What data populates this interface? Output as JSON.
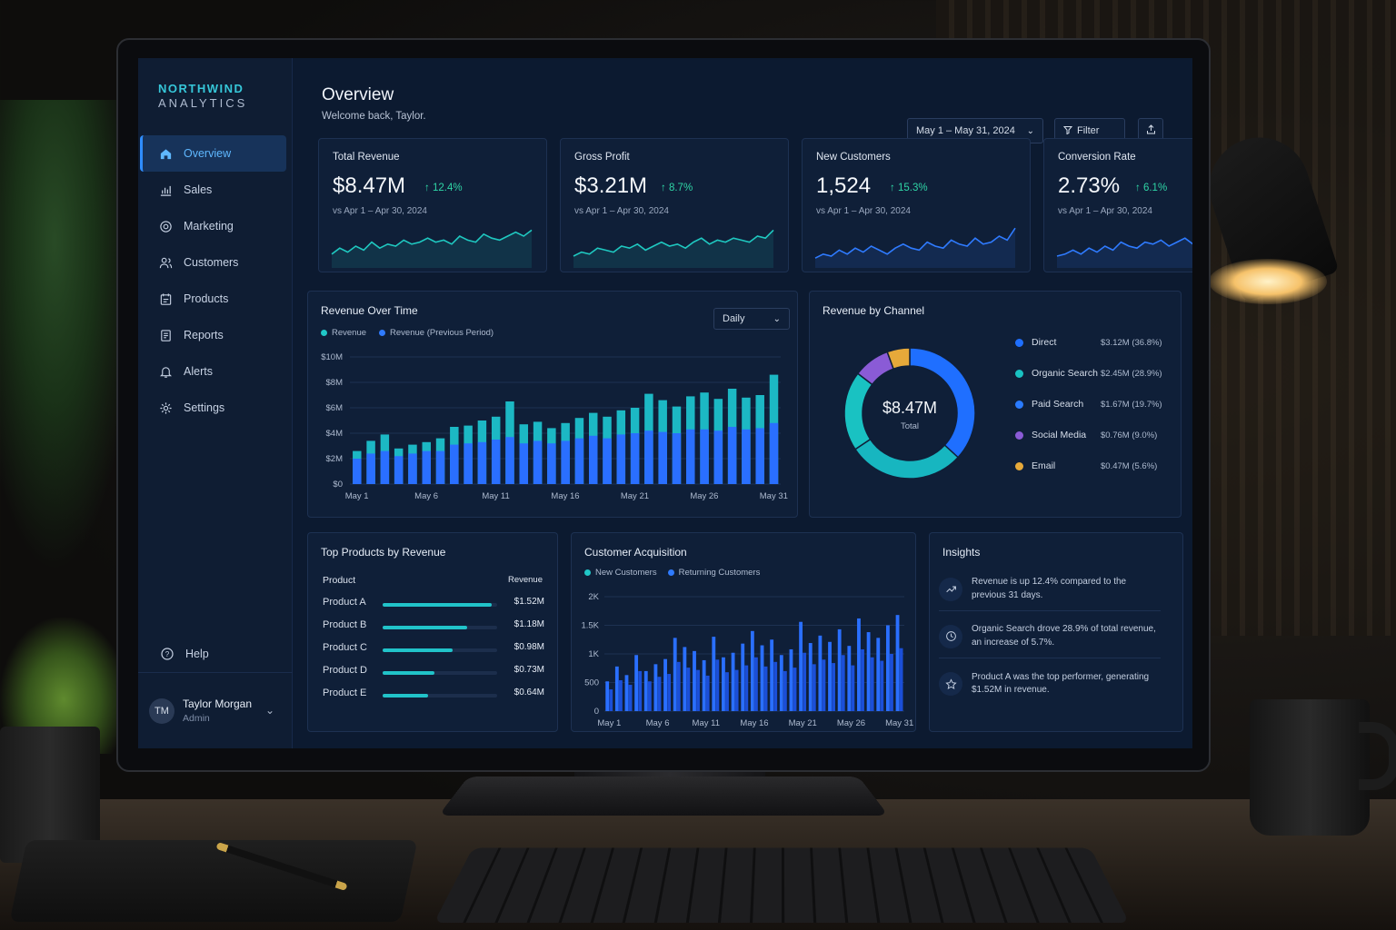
{
  "brand": {
    "line1": "NORTHWIND",
    "line2": "ANALYTICS"
  },
  "sidebar": {
    "items": [
      {
        "label": "Overview",
        "icon": "home-icon",
        "active": true
      },
      {
        "label": "Sales",
        "icon": "bar-chart-icon"
      },
      {
        "label": "Marketing",
        "icon": "target-icon"
      },
      {
        "label": "Customers",
        "icon": "users-icon"
      },
      {
        "label": "Products",
        "icon": "box-icon"
      },
      {
        "label": "Reports",
        "icon": "document-icon"
      },
      {
        "label": "Alerts",
        "icon": "bell-icon"
      },
      {
        "label": "Settings",
        "icon": "gear-icon"
      }
    ],
    "help": "Help",
    "user": {
      "initials": "TM",
      "name": "Taylor Morgan",
      "role": "Admin"
    }
  },
  "header": {
    "title": "Overview",
    "subtitle": "Welcome back, Taylor.",
    "date_range": "May 1 – May 31, 2024",
    "filter": "Filter"
  },
  "kpis": [
    {
      "label": "Total Revenue",
      "value": "$8.47M",
      "delta": "12.4%",
      "compare": "vs Apr 1 – Apr 30, 2024"
    },
    {
      "label": "Gross Profit",
      "value": "$3.21M",
      "delta": "8.7%",
      "compare": "vs Apr 1 – Apr 30, 2024"
    },
    {
      "label": "New Customers",
      "value": "1,524",
      "delta": "15.3%",
      "compare": "vs Apr 1 – Apr 30, 2024"
    },
    {
      "label": "Conversion Rate",
      "value": "2.73%",
      "delta": "6.1%",
      "compare": "vs Apr 1 – Apr 30, 2024"
    }
  ],
  "revenue_over_time": {
    "title": "Revenue Over Time",
    "legend": [
      "Revenue",
      "Revenue (Previous Period)"
    ],
    "granularity": "Daily"
  },
  "revenue_by_channel": {
    "title": "Revenue by Channel",
    "center_value": "$8.47M",
    "center_label": "Total",
    "channels": [
      {
        "name": "Direct",
        "value": "$3.12M (36.8%)",
        "color": "#1f6fff"
      },
      {
        "name": "Organic Search",
        "value": "$2.45M (28.9%)",
        "color": "#19c2c2"
      },
      {
        "name": "Paid Search",
        "value": "$1.67M (19.7%)",
        "color": "#2a7bff"
      },
      {
        "name": "Social Media",
        "value": "$0.76M (9.0%)",
        "color": "#8a5bd6"
      },
      {
        "name": "Email",
        "value": "$0.47M (5.6%)",
        "color": "#e6a93a"
      }
    ]
  },
  "top_products": {
    "title": "Top Products by Revenue",
    "col_product": "Product",
    "col_revenue": "Revenue",
    "rows": [
      {
        "name": "Product A",
        "value": "$1.52M",
        "amount": 1.52
      },
      {
        "name": "Product B",
        "value": "$1.18M",
        "amount": 1.18
      },
      {
        "name": "Product C",
        "value": "$0.98M",
        "amount": 0.98
      },
      {
        "name": "Product D",
        "value": "$0.73M",
        "amount": 0.73
      },
      {
        "name": "Product E",
        "value": "$0.64M",
        "amount": 0.64
      }
    ]
  },
  "customer_acquisition": {
    "title": "Customer Acquisition",
    "legend": [
      "New Customers",
      "Returning Customers"
    ]
  },
  "insights": {
    "title": "Insights",
    "items": [
      {
        "icon": "trend-up-icon",
        "text": "Revenue is up 12.4% compared to the previous 31 days."
      },
      {
        "icon": "clock-icon",
        "text": "Organic Search drove 28.9% of total revenue, an increase of 5.7%."
      },
      {
        "icon": "star-icon",
        "text": "Product A was the top performer, generating $1.52M in revenue."
      }
    ]
  },
  "chart_data": [
    {
      "type": "bar",
      "title": "Revenue Over Time",
      "x": [
        "May 1",
        "May 2",
        "May 3",
        "May 4",
        "May 5",
        "May 6",
        "May 7",
        "May 8",
        "May 9",
        "May 10",
        "May 11",
        "May 12",
        "May 13",
        "May 14",
        "May 15",
        "May 16",
        "May 17",
        "May 18",
        "May 19",
        "May 20",
        "May 21",
        "May 22",
        "May 23",
        "May 24",
        "May 25",
        "May 26",
        "May 27",
        "May 28",
        "May 29",
        "May 30",
        "May 31"
      ],
      "x_tick_labels": [
        "May 1",
        "May 6",
        "May 11",
        "May 16",
        "May 21",
        "May 26",
        "May 31"
      ],
      "series": [
        {
          "name": "Revenue",
          "values": [
            2.6,
            3.4,
            3.9,
            2.8,
            3.1,
            3.3,
            3.6,
            4.5,
            4.6,
            5.0,
            5.3,
            6.5,
            4.7,
            4.9,
            4.4,
            4.8,
            5.2,
            5.6,
            5.3,
            5.8,
            6.0,
            7.1,
            6.6,
            6.1,
            6.9,
            7.2,
            6.7,
            7.5,
            6.8,
            7.0,
            8.6
          ]
        },
        {
          "name": "Revenue (Previous Period)",
          "values": [
            2.0,
            2.4,
            2.6,
            2.2,
            2.4,
            2.6,
            2.6,
            3.1,
            3.2,
            3.3,
            3.5,
            3.7,
            3.2,
            3.4,
            3.2,
            3.4,
            3.6,
            3.8,
            3.6,
            3.9,
            4.0,
            4.2,
            4.1,
            4.0,
            4.3,
            4.3,
            4.2,
            4.5,
            4.3,
            4.4,
            4.8
          ]
        }
      ],
      "ylabel": "",
      "y_tick_labels": [
        "$0",
        "$2M",
        "$4M",
        "$6M",
        "$8M",
        "$10M"
      ],
      "ylim": [
        0,
        10
      ]
    },
    {
      "type": "pie",
      "title": "Revenue by Channel",
      "categories": [
        "Direct",
        "Organic Search",
        "Paid Search",
        "Social Media",
        "Email"
      ],
      "values": [
        36.8,
        28.9,
        19.7,
        9.0,
        5.6
      ]
    },
    {
      "type": "bar",
      "title": "Top Products by Revenue",
      "categories": [
        "Product A",
        "Product B",
        "Product C",
        "Product D",
        "Product E"
      ],
      "values": [
        1.52,
        1.18,
        0.98,
        0.73,
        0.64
      ]
    },
    {
      "type": "bar",
      "title": "Customer Acquisition",
      "x": [
        "May 1",
        "May 2",
        "May 3",
        "May 4",
        "May 5",
        "May 6",
        "May 7",
        "May 8",
        "May 9",
        "May 10",
        "May 11",
        "May 12",
        "May 13",
        "May 14",
        "May 15",
        "May 16",
        "May 17",
        "May 18",
        "May 19",
        "May 20",
        "May 21",
        "May 22",
        "May 23",
        "May 24",
        "May 25",
        "May 26",
        "May 27",
        "May 28",
        "May 29",
        "May 30",
        "May 31"
      ],
      "x_tick_labels": [
        "May 1",
        "May 6",
        "May 11",
        "May 16",
        "May 21",
        "May 26",
        "May 31"
      ],
      "series": [
        {
          "name": "New Customers",
          "values": [
            520,
            780,
            630,
            980,
            700,
            820,
            910,
            1280,
            1120,
            1050,
            890,
            1300,
            940,
            1020,
            1180,
            1400,
            1150,
            1250,
            980,
            1080,
            1560,
            1190,
            1320,
            1210,
            1430,
            1140,
            1620,
            1380,
            1280,
            1500,
            1680
          ]
        },
        {
          "name": "Returning Customers",
          "values": [
            380,
            540,
            460,
            700,
            520,
            600,
            650,
            860,
            760,
            720,
            620,
            900,
            680,
            720,
            800,
            940,
            780,
            860,
            700,
            760,
            1020,
            820,
            900,
            840,
            980,
            800,
            1080,
            940,
            880,
            1000,
            1100
          ]
        }
      ],
      "y_tick_labels": [
        "0",
        "500",
        "1K",
        "1.5K",
        "2K"
      ],
      "ylim": [
        0,
        2000
      ]
    }
  ]
}
